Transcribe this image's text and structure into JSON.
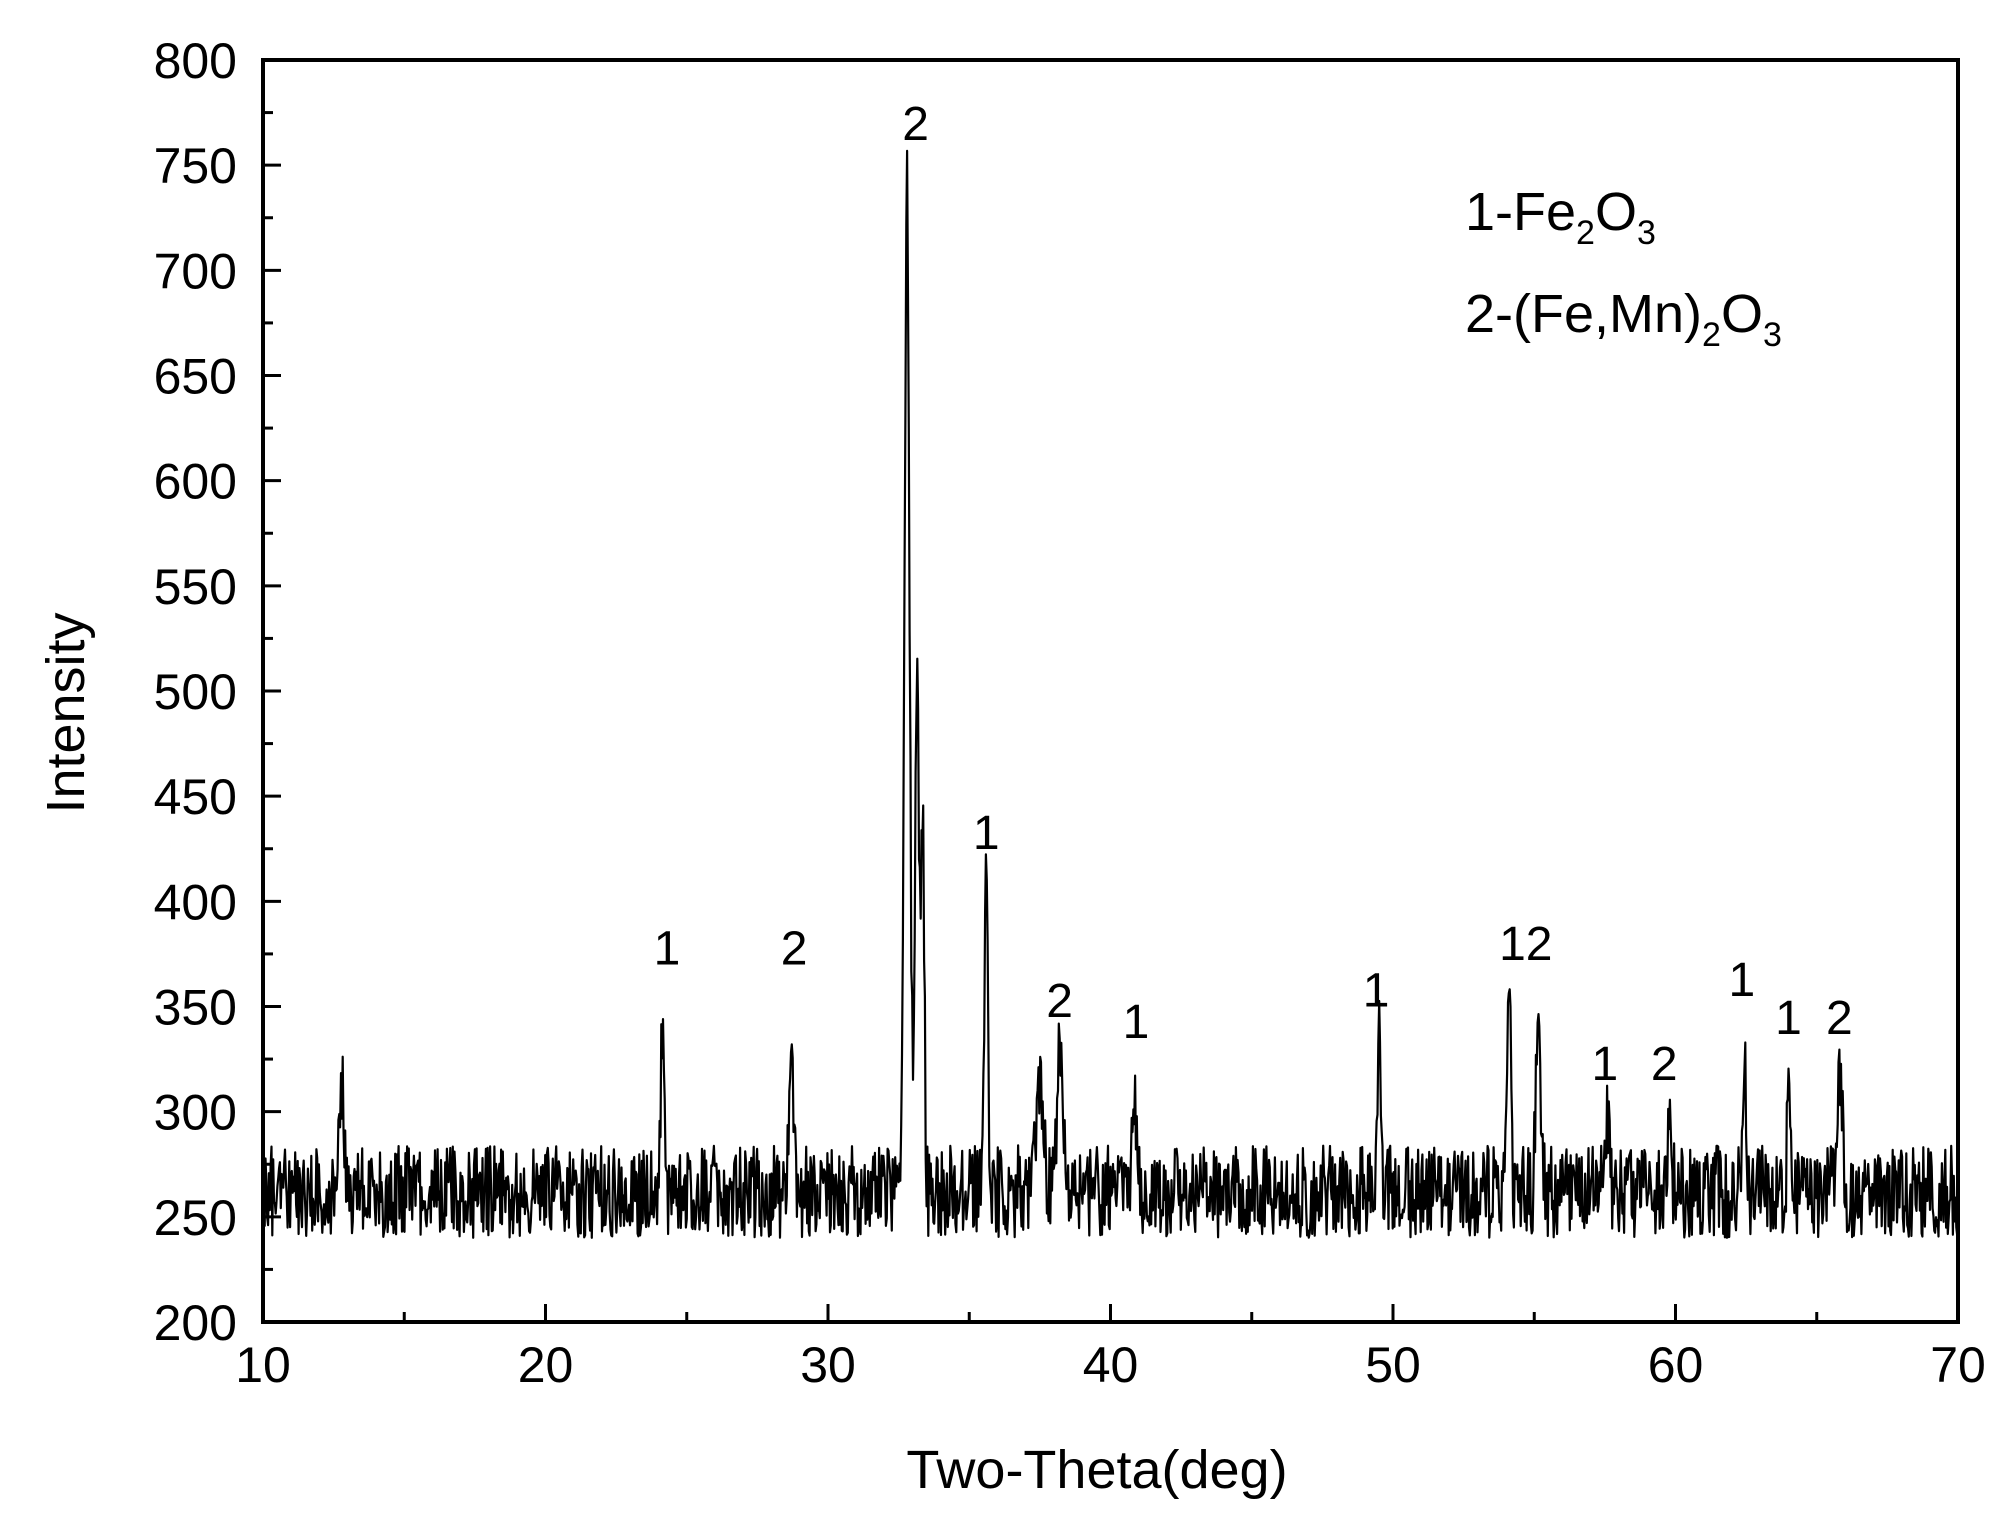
{
  "chart_data": {
    "type": "line",
    "title": "",
    "xlabel": "Two-Theta(deg)",
    "ylabel": "Intensity",
    "xlim": [
      10,
      70
    ],
    "ylim": [
      200,
      800
    ],
    "x_ticks": [
      10,
      20,
      30,
      40,
      50,
      60,
      70
    ],
    "y_ticks": [
      200,
      250,
      300,
      350,
      400,
      450,
      500,
      550,
      600,
      650,
      700,
      750,
      800
    ],
    "grid": false,
    "legend_position": "top-right",
    "legend": [
      {
        "num": "1",
        "dash": "-",
        "parts": [
          {
            "t": "Fe",
            "sub": false
          },
          {
            "t": "2",
            "sub": true
          },
          {
            "t": "O",
            "sub": false
          },
          {
            "t": "3",
            "sub": true
          }
        ]
      },
      {
        "num": "2",
        "dash": "-",
        "parts": [
          {
            "t": "(Fe,Mn)",
            "sub": false
          },
          {
            "t": "2",
            "sub": true
          },
          {
            "t": "O",
            "sub": false
          },
          {
            "t": "3",
            "sub": true
          }
        ]
      }
    ],
    "baseline": 262,
    "noise_amplitude": 22,
    "x_step": 0.03,
    "series": [
      {
        "peaks": [
          {
            "x": 12.8,
            "y": 310,
            "w": 0.08
          },
          {
            "x": 24.15,
            "y": 345,
            "w": 0.06
          },
          {
            "x": 28.7,
            "y": 350,
            "w": 0.07
          },
          {
            "x": 32.8,
            "y": 735,
            "w": 0.09
          },
          {
            "x": 33.15,
            "y": 515,
            "w": 0.07
          },
          {
            "x": 33.35,
            "y": 440,
            "w": 0.06
          },
          {
            "x": 35.6,
            "y": 405,
            "w": 0.06
          },
          {
            "x": 37.5,
            "y": 318,
            "w": 0.12
          },
          {
            "x": 38.2,
            "y": 332,
            "w": 0.1
          },
          {
            "x": 40.85,
            "y": 310,
            "w": 0.07
          },
          {
            "x": 49.5,
            "y": 337,
            "w": 0.06
          },
          {
            "x": 54.1,
            "y": 358,
            "w": 0.07
          },
          {
            "x": 55.15,
            "y": 355,
            "w": 0.08
          },
          {
            "x": 57.6,
            "y": 300,
            "w": 0.06
          },
          {
            "x": 59.8,
            "y": 296,
            "w": 0.06
          },
          {
            "x": 62.45,
            "y": 336,
            "w": 0.05
          },
          {
            "x": 64.0,
            "y": 323,
            "w": 0.05
          },
          {
            "x": 65.8,
            "y": 325,
            "w": 0.1
          }
        ]
      }
    ],
    "annotations": [
      {
        "text": "2",
        "x": 33.1,
        "y": 762
      },
      {
        "text": "1",
        "x": 35.6,
        "y": 425
      },
      {
        "text": "1",
        "x": 24.3,
        "y": 370
      },
      {
        "text": "2",
        "x": 28.8,
        "y": 370
      },
      {
        "text": "2",
        "x": 38.2,
        "y": 345
      },
      {
        "text": "1",
        "x": 40.9,
        "y": 335
      },
      {
        "text": "1",
        "x": 49.4,
        "y": 350
      },
      {
        "text": "12",
        "x": 54.7,
        "y": 372
      },
      {
        "text": "1",
        "x": 57.5,
        "y": 315
      },
      {
        "text": "2",
        "x": 59.6,
        "y": 315
      },
      {
        "text": "1",
        "x": 62.35,
        "y": 355
      },
      {
        "text": "1",
        "x": 64.0,
        "y": 337
      },
      {
        "text": "2",
        "x": 65.8,
        "y": 337
      }
    ]
  }
}
